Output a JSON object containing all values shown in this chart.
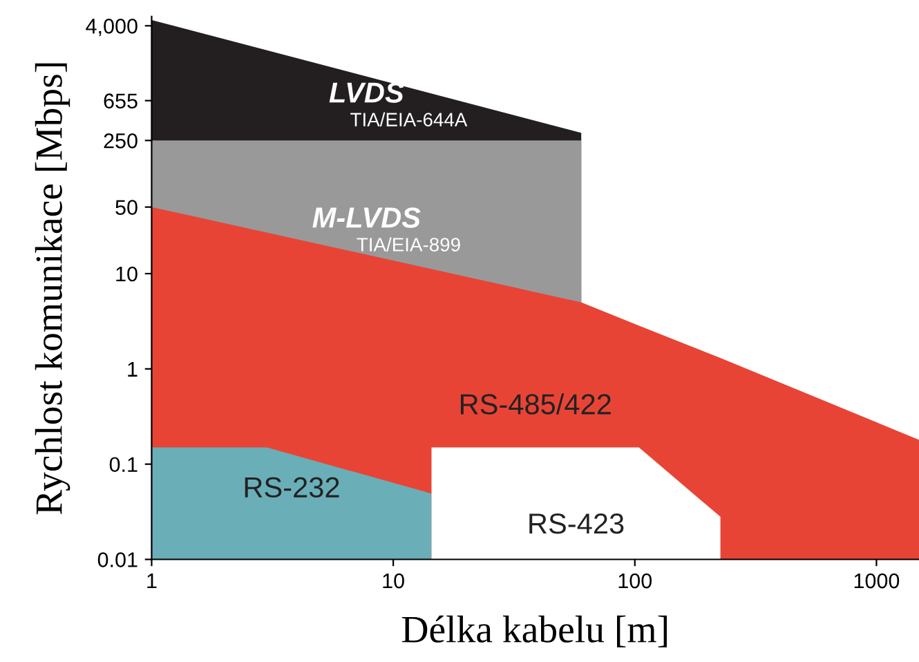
{
  "chart_data": {
    "type": "area",
    "xlabel": "Délka kabelu [m]",
    "ylabel": "Rychlost komunikace [Mbps]",
    "log": "xy",
    "grid": false,
    "xlim": [
      1,
      1500
    ],
    "ylim": [
      0.01,
      5000
    ],
    "xticks": [
      1,
      10,
      100,
      1000
    ],
    "yticks": [
      0.01,
      0.1,
      1,
      10,
      50,
      250,
      655,
      {
        "value": 4000,
        "label": "4,000"
      }
    ],
    "series": [
      {
        "name": "LVDS",
        "color": "#231f20",
        "x": [
          1,
          60
        ],
        "values": [
          4600,
          300
        ]
      },
      {
        "name": "M-LVDS",
        "color": "#999999",
        "x": [
          1,
          60
        ],
        "values": [
          250,
          250
        ]
      },
      {
        "name": "RS-485/422",
        "color": "#e84436",
        "x": [
          1,
          60,
          104,
          226,
          1500
        ],
        "values": [
          50,
          5,
          2.85,
          1.3,
          0.18
        ]
      },
      {
        "name": "RS-232",
        "color": "#6aaeb8",
        "x": [
          1,
          3,
          14.4,
          14.4
        ],
        "values": [
          0.15,
          0.15,
          0.049,
          0.01
        ]
      },
      {
        "name": "RS-423",
        "color": "#ffffff",
        "x": [
          14.4,
          104,
          226,
          226
        ],
        "values": [
          0.15,
          0.15,
          0.028,
          0.01
        ]
      }
    ],
    "annotations": [
      "TIA/EIA-644A",
      "TIA/EIA-899"
    ]
  }
}
